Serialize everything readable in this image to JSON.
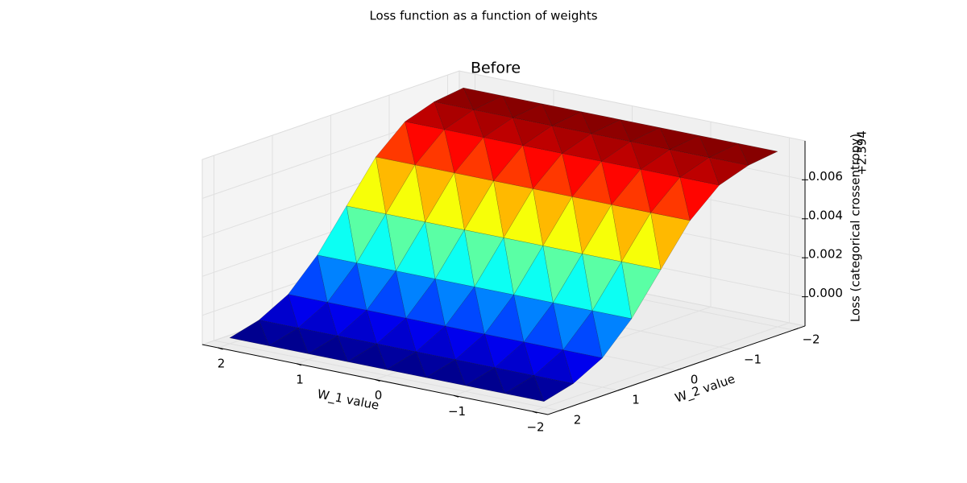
{
  "chart_data": {
    "type": "surface3d",
    "title": "Loss function as a function of weights",
    "subtitle": "Before",
    "xlabel": "W_1 value",
    "ylabel": "W_2 value",
    "zlabel": "Loss (categorical crossentropy)",
    "z_offset_text": "+2.394",
    "x": [
      -2,
      -1.5,
      -1,
      -0.5,
      0,
      0.5,
      1,
      1.5,
      2
    ],
    "y": [
      -2,
      -1.5,
      -1,
      -0.5,
      0,
      0.5,
      1,
      1.5,
      2
    ],
    "z": [
      [
        0.0075,
        0.0075,
        0.0075,
        0.0075,
        0.0075,
        0.0075,
        0.0075,
        0.0075,
        0.0075
      ],
      [
        0.0073,
        0.0073,
        0.0073,
        0.0073,
        0.0073,
        0.0073,
        0.0073,
        0.0073,
        0.0073
      ],
      [
        0.0068,
        0.0068,
        0.0068,
        0.0068,
        0.0068,
        0.0068,
        0.0068,
        0.0068,
        0.0068
      ],
      [
        0.0055,
        0.0055,
        0.0055,
        0.0055,
        0.0055,
        0.0055,
        0.0055,
        0.0055,
        0.0055
      ],
      [
        0.0035,
        0.0035,
        0.0035,
        0.0035,
        0.0035,
        0.0035,
        0.0035,
        0.0035,
        0.0035
      ],
      [
        0.0015,
        0.0015,
        0.0015,
        0.0015,
        0.0015,
        0.0015,
        0.0015,
        0.0015,
        0.0015
      ],
      [
        0.0,
        0.0,
        0.0,
        0.0,
        0.0,
        0.0,
        0.0,
        0.0,
        0.0
      ],
      [
        -0.0008,
        -0.0008,
        -0.0008,
        -0.0008,
        -0.0008,
        -0.0008,
        -0.0008,
        -0.0008,
        -0.0008
      ],
      [
        -0.0012,
        -0.0012,
        -0.0012,
        -0.0012,
        -0.0012,
        -0.0012,
        -0.0012,
        -0.0012,
        -0.0012
      ]
    ],
    "colormap": "jet",
    "xlim": [
      -2.2,
      2.2
    ],
    "ylim": [
      -2.2,
      2.2
    ],
    "zlim": [
      -0.0015,
      0.008
    ],
    "xticks": [
      {
        "value": -2,
        "label": "−2"
      },
      {
        "value": -1,
        "label": "−1"
      },
      0,
      1,
      2
    ],
    "yticks": [
      {
        "value": -2,
        "label": "−2"
      },
      {
        "value": -1,
        "label": "−1"
      },
      0,
      1,
      2
    ],
    "zticks": [
      {
        "value": 0,
        "label": "0.000"
      },
      {
        "value": 0.002,
        "label": "0.002"
      },
      {
        "value": 0.004,
        "label": "0.004"
      },
      {
        "value": 0.006,
        "label": "0.006"
      }
    ],
    "grid": true
  }
}
